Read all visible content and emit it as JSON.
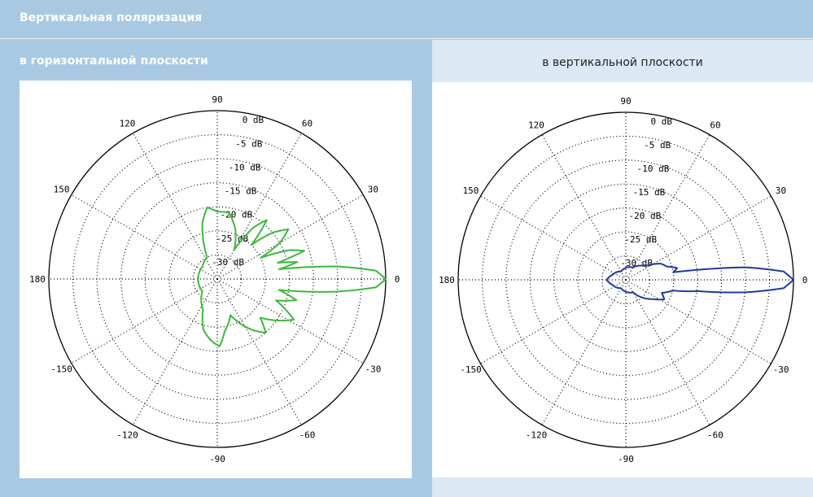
{
  "header": {
    "title": "Вертикальная поляризация"
  },
  "panels": {
    "left_title": "в горизонтальной плоскости",
    "right_title": "в вертикальной плоскости"
  },
  "chart_data": [
    {
      "type": "polar-line",
      "title": "в горизонтальной плоскости",
      "angle_ticks": [
        "0",
        "30",
        "60",
        "90",
        "120",
        "150",
        "180",
        "-150",
        "-120",
        "-90",
        "-60",
        "-30"
      ],
      "radial_labels": [
        "0 dB",
        "-5 dB",
        "-10 dB",
        "-15 dB",
        "-20 dB",
        "-25 dB",
        "-30 dB"
      ],
      "rlim_db": [
        -35,
        0
      ],
      "grid": true,
      "series": [
        {
          "color": "#3db83d",
          "points_deg_db": [
            [
              0,
              0
            ],
            [
              3,
              -2
            ],
            [
              6,
              -10
            ],
            [
              9,
              -22
            ],
            [
              12,
              -18
            ],
            [
              15,
              -22
            ],
            [
              18,
              -16
            ],
            [
              22,
              -19
            ],
            [
              26,
              -25
            ],
            [
              30,
              -20
            ],
            [
              35,
              -17
            ],
            [
              40,
              -20
            ],
            [
              45,
              -25
            ],
            [
              50,
              -19
            ],
            [
              55,
              -22
            ],
            [
              60,
              -28
            ],
            [
              70,
              -24
            ],
            [
              80,
              -21
            ],
            [
              90,
              -21
            ],
            [
              98,
              -20
            ],
            [
              105,
              -23
            ],
            [
              115,
              -30
            ],
            [
              140,
              -31
            ],
            [
              180,
              -31
            ],
            [
              220,
              -31
            ],
            [
              245,
              -28
            ],
            [
              255,
              -24
            ],
            [
              265,
              -22
            ],
            [
              272,
              -21
            ],
            [
              278,
              -24
            ],
            [
              290,
              -27
            ],
            [
              305,
              -22
            ],
            [
              312,
              -20
            ],
            [
              318,
              -23
            ],
            [
              325,
              -20
            ],
            [
              332,
              -17
            ],
            [
              340,
              -22
            ],
            [
              345,
              -18
            ],
            [
              350,
              -22
            ],
            [
              354,
              -10
            ],
            [
              357,
              -2
            ],
            [
              360,
              0
            ]
          ]
        }
      ]
    },
    {
      "type": "polar-line",
      "title": "в вертикальной плоскости",
      "angle_ticks": [
        "0",
        "30",
        "60",
        "90",
        "120",
        "150",
        "180",
        "-150",
        "-120",
        "-90",
        "-60",
        "-30"
      ],
      "radial_labels": [
        "0 dB",
        "-5 dB",
        "-10 dB",
        "-15 dB",
        "-20 dB",
        "-25 dB",
        "-30 dB"
      ],
      "rlim_db": [
        -35,
        0
      ],
      "grid": true,
      "series": [
        {
          "color": "#1f3a9e",
          "points_deg_db": [
            [
              0,
              0
            ],
            [
              3,
              -2
            ],
            [
              6,
              -10
            ],
            [
              9,
              -25
            ],
            [
              13,
              -24
            ],
            [
              18,
              -26
            ],
            [
              25,
              -27
            ],
            [
              35,
              -30
            ],
            [
              60,
              -32
            ],
            [
              120,
              -33
            ],
            [
              160,
              -32
            ],
            [
              180,
              -31
            ],
            [
              200,
              -32
            ],
            [
              240,
              -33
            ],
            [
              300,
              -32
            ],
            [
              325,
              -28
            ],
            [
              333,
              -26
            ],
            [
              340,
              -27
            ],
            [
              347,
              -25
            ],
            [
              351,
              -20
            ],
            [
              354,
              -10
            ],
            [
              357,
              -2
            ],
            [
              360,
              0
            ]
          ]
        }
      ]
    }
  ]
}
